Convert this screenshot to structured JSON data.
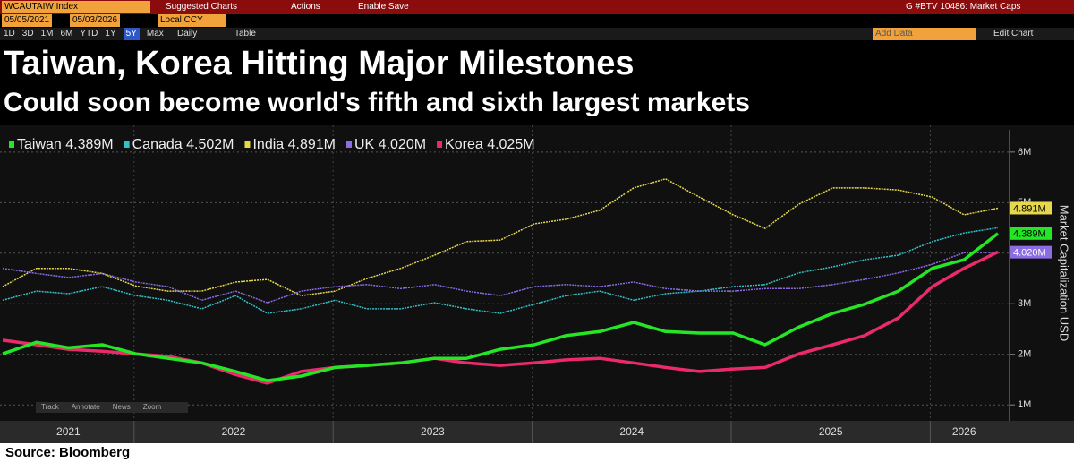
{
  "toolbar": {
    "security": "WCAUTAIW Index",
    "menu": [
      "Suggested Charts",
      "Actions",
      "Enable Save"
    ],
    "page": "G #BTV 10486: Market Caps",
    "start_date": "05/05/2021",
    "end_date": "05/03/2026",
    "currency": "Local CCY",
    "periods": [
      "1D",
      "3D",
      "1M",
      "6M",
      "YTD",
      "1Y",
      "5Y",
      "Max"
    ],
    "active_period": 6,
    "frequency": "Daily",
    "table": "Table",
    "add_data": "Add Data",
    "edit_chart": "Edit Chart",
    "overlay": [
      "Track",
      "Annotate",
      "News",
      "Zoom"
    ]
  },
  "chart_data": {
    "type": "line",
    "title": "Taiwan, Korea Hitting Major Milestones",
    "subtitle": "Could soon become world's fifth and sixth largest markets",
    "y_label": "Market Capitalization USD",
    "source": "Source: Bloomberg",
    "x": [
      2021.34,
      2021.51,
      2021.67,
      2021.84,
      2022.01,
      2022.17,
      2022.34,
      2022.51,
      2022.67,
      2022.84,
      2023.01,
      2023.17,
      2023.34,
      2023.51,
      2023.67,
      2023.84,
      2024.01,
      2024.17,
      2024.34,
      2024.51,
      2024.67,
      2024.84,
      2025.01,
      2025.17,
      2025.34,
      2025.51,
      2025.67,
      2025.84,
      2026.01,
      2026.17,
      2026.34
    ],
    "xlim": [
      2021.34,
      2026.34
    ],
    "xticks": [
      {
        "value": 2021,
        "label": "2021"
      },
      {
        "value": 2022,
        "label": "2022"
      },
      {
        "value": 2023,
        "label": "2023"
      },
      {
        "value": 2024,
        "label": "2024"
      },
      {
        "value": 2025,
        "label": "2025"
      },
      {
        "value": 2026,
        "label": "2026"
      }
    ],
    "ylim": [
      0.72,
      6.44
    ],
    "yticks": [
      {
        "value": 1,
        "label": "1M"
      },
      {
        "value": 2,
        "label": "2M"
      },
      {
        "value": 3,
        "label": "3M"
      },
      {
        "value": 4,
        "label": "4M"
      },
      {
        "value": 5,
        "label": "5M"
      },
      {
        "value": 6,
        "label": "6M"
      }
    ],
    "grid": true,
    "series": [
      {
        "name": "Taiwan 4.389M",
        "color": "#25e625",
        "last_label": "4.389M",
        "values": [
          2.01,
          2.24,
          2.13,
          2.19,
          2.01,
          1.92,
          1.83,
          1.66,
          1.48,
          1.57,
          1.74,
          1.78,
          1.83,
          1.92,
          1.92,
          2.1,
          2.19,
          2.37,
          2.45,
          2.63,
          2.45,
          2.42,
          2.42,
          2.19,
          2.54,
          2.81,
          2.99,
          3.25,
          3.7,
          3.87,
          4.389
        ]
      },
      {
        "name": "Canada 4.502M",
        "color": "#33c1c9",
        "values": [
          3.07,
          3.25,
          3.2,
          3.34,
          3.16,
          3.07,
          2.9,
          3.16,
          2.81,
          2.9,
          3.07,
          2.9,
          2.9,
          3.02,
          2.9,
          2.81,
          2.99,
          3.16,
          3.25,
          3.07,
          3.2,
          3.25,
          3.34,
          3.38,
          3.61,
          3.73,
          3.87,
          3.96,
          4.23,
          4.4,
          4.502
        ]
      },
      {
        "name": "India 4.891M",
        "color": "#e6d84a",
        "last_label": "4.891M",
        "values": [
          3.34,
          3.7,
          3.7,
          3.6,
          3.35,
          3.25,
          3.25,
          3.43,
          3.48,
          3.16,
          3.25,
          3.5,
          3.7,
          3.96,
          4.23,
          4.26,
          4.58,
          4.67,
          4.85,
          5.29,
          5.47,
          5.11,
          4.76,
          4.49,
          4.97,
          5.29,
          5.29,
          5.25,
          5.11,
          4.76,
          4.891
        ]
      },
      {
        "name": "UK 4.020M",
        "color": "#8b6ce3",
        "last_label": "4.020M",
        "values": [
          3.7,
          3.6,
          3.52,
          3.6,
          3.43,
          3.34,
          3.07,
          3.25,
          3.02,
          3.25,
          3.34,
          3.38,
          3.3,
          3.38,
          3.25,
          3.16,
          3.34,
          3.38,
          3.34,
          3.43,
          3.3,
          3.25,
          3.25,
          3.3,
          3.3,
          3.38,
          3.48,
          3.61,
          3.78,
          4.01,
          4.02
        ]
      },
      {
        "name": "Korea 4.025M",
        "color": "#ea2a6c",
        "values": [
          2.28,
          2.19,
          2.1,
          2.06,
          2.01,
          1.96,
          1.83,
          1.6,
          1.43,
          1.66,
          1.74,
          1.78,
          1.83,
          1.92,
          1.83,
          1.78,
          1.83,
          1.89,
          1.92,
          1.83,
          1.74,
          1.66,
          1.71,
          1.74,
          2.01,
          2.19,
          2.37,
          2.72,
          3.34,
          3.7,
          4.025
        ]
      }
    ]
  }
}
